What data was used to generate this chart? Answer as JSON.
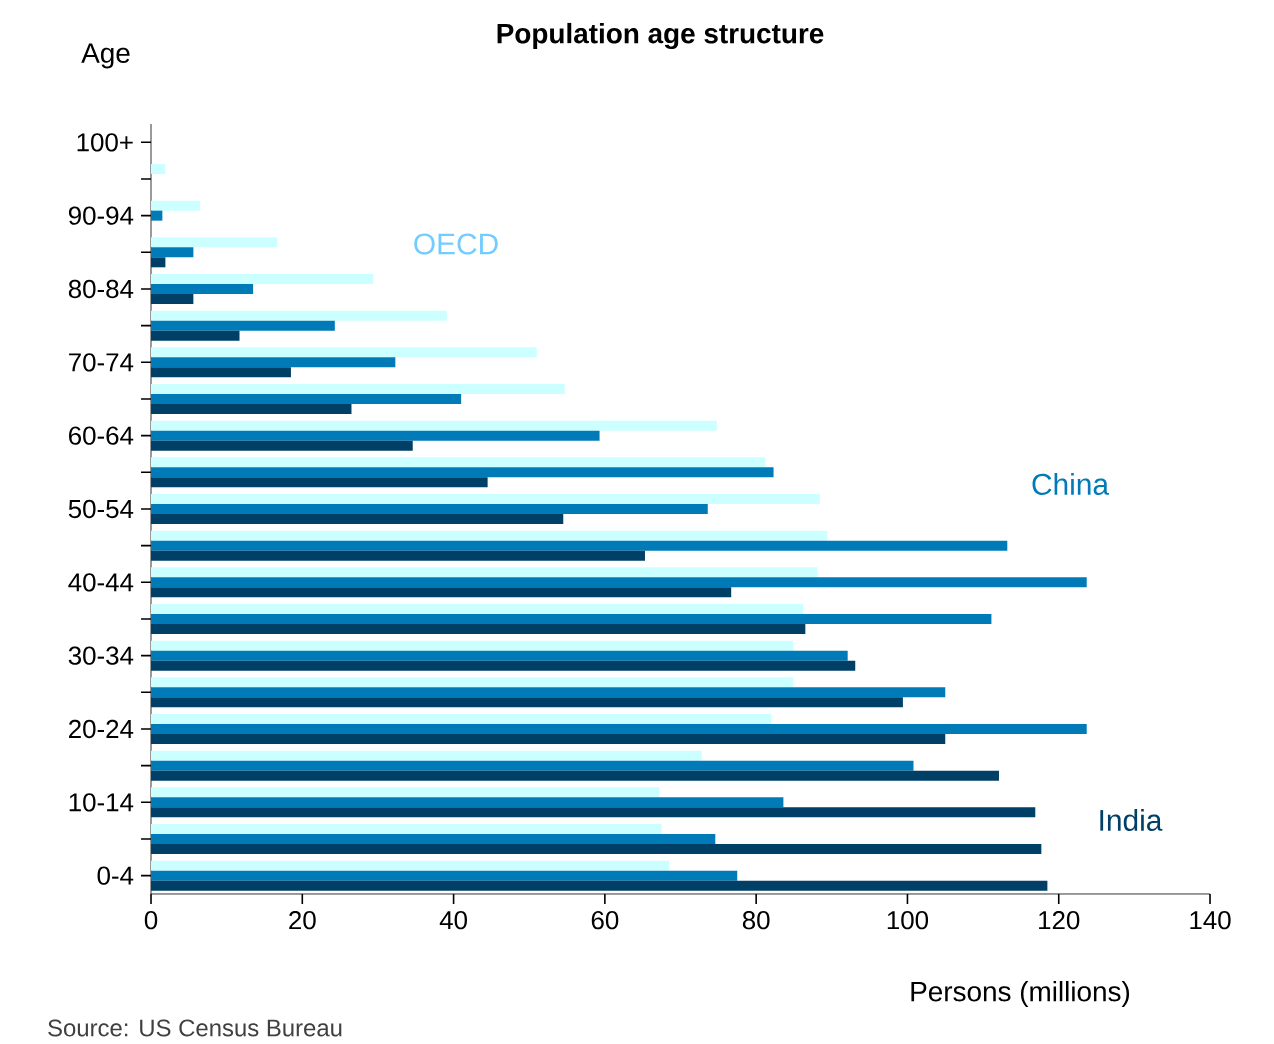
{
  "chart_data": {
    "type": "bar",
    "orientation": "horizontal",
    "title": "Population age structure",
    "ylabel": "Age",
    "xlabel": "Persons (millions)",
    "categories": [
      "100+",
      null,
      "90-94",
      null,
      "80-84",
      null,
      "70-74",
      null,
      "60-64",
      null,
      "50-54",
      null,
      "40-44",
      null,
      "30-34",
      null,
      "20-24",
      null,
      "10-14",
      null,
      "0-4"
    ],
    "series": [
      {
        "name": "OECD",
        "color": "#ccffff",
        "values": [
          0,
          1.9,
          6.5,
          16.7,
          29.4,
          39.1,
          51.0,
          54.7,
          74.8,
          81.2,
          88.4,
          89.4,
          88.1,
          86.2,
          84.9,
          84.9,
          82.0,
          72.8,
          67.2,
          67.5,
          68.5
        ]
      },
      {
        "name": "China",
        "color": "#007bb8",
        "values": [
          0,
          0,
          1.5,
          5.6,
          13.5,
          24.3,
          32.3,
          41.0,
          59.3,
          82.3,
          73.6,
          113.2,
          123.7,
          111.1,
          92.1,
          105.0,
          123.7,
          100.8,
          83.6,
          74.6,
          77.5
        ]
      },
      {
        "name": "India",
        "color": "#003f66",
        "values": [
          0,
          0,
          0,
          1.9,
          5.6,
          11.7,
          18.5,
          26.5,
          34.6,
          44.5,
          54.5,
          65.3,
          76.7,
          86.5,
          93.1,
          99.4,
          105.0,
          112.1,
          116.9,
          117.7,
          118.5
        ]
      }
    ],
    "xlim": [
      0,
      140
    ],
    "xticks": [
      0,
      20,
      40,
      60,
      80,
      100,
      120,
      140
    ],
    "grid": false,
    "legend": false,
    "annotations": [
      "Source: US Census Bureau"
    ]
  }
}
